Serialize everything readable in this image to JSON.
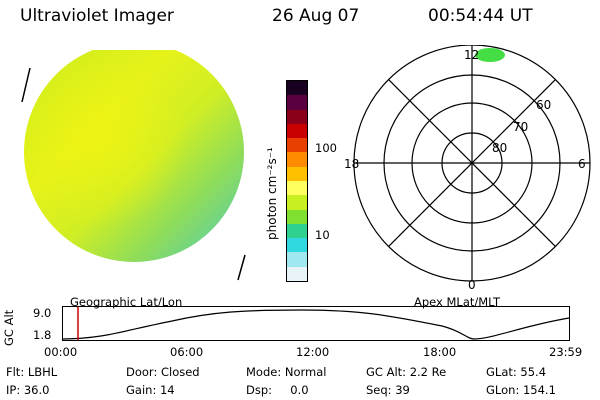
{
  "header": {
    "title": "Ultraviolet Imager",
    "date": "26 Aug 07",
    "time": "00:54:44 UT"
  },
  "colorbar": {
    "unit_label": "photon cm⁻²s⁻¹",
    "ticks": [
      "100",
      "10"
    ],
    "colors": [
      "#1a0020",
      "#5a0040",
      "#8a0018",
      "#c80000",
      "#e84000",
      "#ff8c00",
      "#ffc000",
      "#ffff60",
      "#c8f020",
      "#80e030",
      "#30d090",
      "#30d8e0",
      "#a0e8f0",
      "#e8f4f8"
    ]
  },
  "polar": {
    "top_label": "12",
    "bottom_label": "0",
    "left_label": "18",
    "right_label": "6",
    "ring_labels": [
      "60",
      "70",
      "80"
    ],
    "aurora_color": "#44dd44"
  },
  "timeline": {
    "left_title": "Geographic Lat/Lon",
    "right_title": "Apex MLat/MLT",
    "axis_label": "GC Alt",
    "y_ticks": [
      "9.0",
      "1.8"
    ],
    "x_ticks": [
      "00:00",
      "06:00",
      "12:00",
      "18:00",
      "23:59"
    ],
    "marker_color": "#cc0000"
  },
  "info": {
    "filter": "Flt: LBHL",
    "door": "Door: Closed",
    "mode": "Mode: Normal",
    "gc_alt": "GC Alt: 2.2 Re",
    "glat": "GLat:  55.4",
    "ip": "IP: 36.0",
    "gain": "Gain: 14",
    "dsp": "Dsp:     0.0",
    "seq": "Seq: 39",
    "glon": "GLon: 154.1"
  }
}
